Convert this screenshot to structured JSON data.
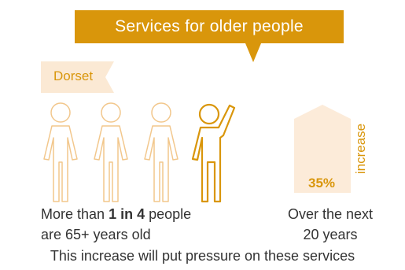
{
  "banner": {
    "title": "Services for older people"
  },
  "region": {
    "label": "Dorset"
  },
  "people_stat": {
    "prefix": "More than",
    "highlight": "1 in 4",
    "suffix": "people",
    "line2": "are 65+ years old",
    "figures_total": 4,
    "figures_highlighted": 1
  },
  "growth_stat": {
    "value": "35%",
    "word": "increase",
    "caption_line1": "Over the next",
    "caption_line2": "20 years"
  },
  "footer": {
    "text": "This increase will put pressure on these services"
  },
  "colors": {
    "accent": "#d9960b",
    "tag_fill": "#fbe9d4",
    "growth_fill": "#fcebd9",
    "text": "#333333"
  }
}
